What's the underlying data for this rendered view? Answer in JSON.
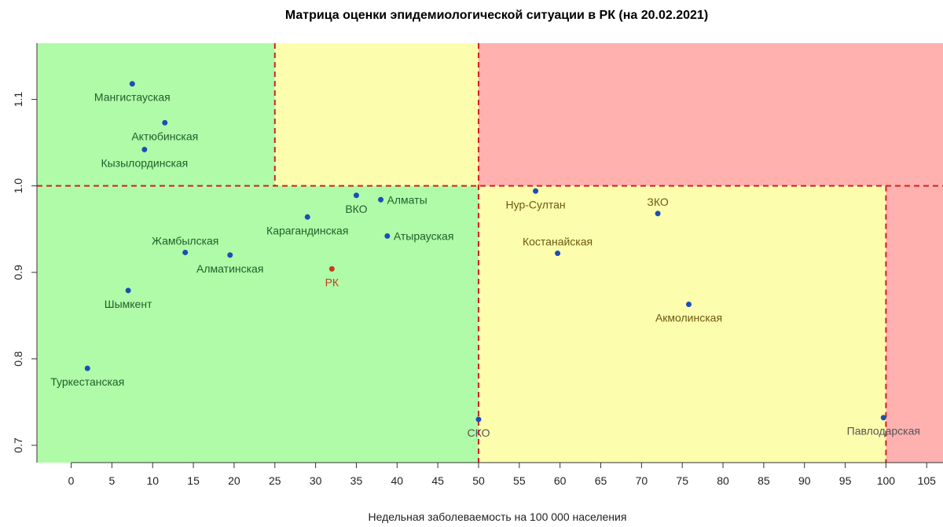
{
  "chart_data": {
    "type": "scatter",
    "title": "Матрица оценки эпидемиологической ситуации в РК (на 20.02.2021)",
    "xlabel": "Недельная заболеваемость на 100 000 населения",
    "ylabel": "",
    "xlim": [
      -4.2,
      107
    ],
    "ylim": [
      0.68,
      1.165
    ],
    "x_ticks": [
      0,
      5,
      10,
      15,
      20,
      25,
      30,
      35,
      40,
      45,
      50,
      55,
      60,
      65,
      70,
      75,
      80,
      85,
      90,
      95,
      100,
      105
    ],
    "y_ticks": [
      0.7,
      0.8,
      0.9,
      1.0,
      1.1
    ],
    "y_tick_labels": [
      "0.7",
      "0.8",
      "0.9",
      "1.0",
      "1.1"
    ],
    "zones": [
      {
        "x": [
          -4.2,
          50
        ],
        "y": [
          0.68,
          1.0
        ],
        "color": "#b0fba8"
      },
      {
        "x": [
          -4.2,
          25
        ],
        "y": [
          1.0,
          1.165
        ],
        "color": "#b0fba8"
      },
      {
        "x": [
          25,
          50
        ],
        "y": [
          1.0,
          1.165
        ],
        "color": "#fdfdae"
      },
      {
        "x": [
          50,
          107
        ],
        "y": [
          1.0,
          1.165
        ],
        "color": "#ffb1b0"
      },
      {
        "x": [
          50,
          100
        ],
        "y": [
          0.68,
          1.0
        ],
        "color": "#fdfdae"
      },
      {
        "x": [
          100,
          107
        ],
        "y": [
          0.68,
          1.0
        ],
        "color": "#ffb1b0"
      }
    ],
    "threshold_lines": [
      {
        "orientation": "h",
        "value": 1.0,
        "from": -4.2,
        "to": 107
      },
      {
        "orientation": "v",
        "value": 25,
        "from": 1.0,
        "to": 1.165
      },
      {
        "orientation": "v",
        "value": 50,
        "from": 0.68,
        "to": 1.165
      },
      {
        "orientation": "v",
        "value": 100,
        "from": 0.68,
        "to": 1.0
      }
    ],
    "line_color": "#d42020",
    "point_color": "#1a4fb5",
    "highlight_color": "#c0401a",
    "points": [
      {
        "name": "Мангистауская",
        "x": 7.5,
        "y": 1.118,
        "label_dx": 0,
        "label_dy": 22,
        "anchor": "middle",
        "label_color": "#1f5f2a"
      },
      {
        "name": "Актюбинская",
        "x": 11.5,
        "y": 1.073,
        "label_dx": 0,
        "label_dy": 22,
        "anchor": "middle",
        "label_color": "#1f5f2a"
      },
      {
        "name": "Кызылординская",
        "x": 9,
        "y": 1.042,
        "label_dx": 0,
        "label_dy": 22,
        "anchor": "middle",
        "label_color": "#1f5f2a"
      },
      {
        "name": "ВКО",
        "x": 35,
        "y": 0.989,
        "label_dx": 0,
        "label_dy": 22,
        "anchor": "middle",
        "label_color": "#1f5f2a"
      },
      {
        "name": "Алматы",
        "x": 38,
        "y": 0.984,
        "label_dx": 8,
        "label_dy": 5,
        "anchor": "start",
        "label_color": "#1f5f2a"
      },
      {
        "name": "Карагандинская",
        "x": 29,
        "y": 0.964,
        "label_dx": 0,
        "label_dy": 22,
        "anchor": "middle",
        "label_color": "#1f5f2a"
      },
      {
        "name": "Атырауская",
        "x": 38.8,
        "y": 0.942,
        "label_dx": 8,
        "label_dy": 5,
        "anchor": "start",
        "label_color": "#1f5f2a"
      },
      {
        "name": "Жамбылская",
        "x": 14,
        "y": 0.923,
        "label_dx": 0,
        "label_dy": -10,
        "anchor": "middle",
        "label_color": "#1f5f2a"
      },
      {
        "name": "Алматинская",
        "x": 19.5,
        "y": 0.92,
        "label_dx": 0,
        "label_dy": 22,
        "anchor": "middle",
        "label_color": "#1f5f2a"
      },
      {
        "name": "РК",
        "x": 32,
        "y": 0.904,
        "label_dx": 0,
        "label_dy": 22,
        "anchor": "middle",
        "label_color": "#c0401a",
        "highlight": true
      },
      {
        "name": "Шымкент",
        "x": 7,
        "y": 0.879,
        "label_dx": 0,
        "label_dy": 22,
        "anchor": "middle",
        "label_color": "#1f5f2a"
      },
      {
        "name": "Туркестанская",
        "x": 2,
        "y": 0.789,
        "label_dx": 0,
        "label_dy": 22,
        "anchor": "middle",
        "label_color": "#1f5f2a"
      },
      {
        "name": "СКО",
        "x": 50,
        "y": 0.73,
        "label_dx": 0,
        "label_dy": 22,
        "anchor": "middle",
        "label_color": "#555555"
      },
      {
        "name": "Нур-Султан",
        "x": 57,
        "y": 0.994,
        "label_dx": 0,
        "label_dy": 22,
        "anchor": "middle",
        "label_color": "#6b5a10"
      },
      {
        "name": "ЗКО",
        "x": 72,
        "y": 0.968,
        "label_dx": 0,
        "label_dy": -10,
        "anchor": "middle",
        "label_color": "#6b5a10"
      },
      {
        "name": "Костанайская",
        "x": 59.7,
        "y": 0.922,
        "label_dx": 0,
        "label_dy": -10,
        "anchor": "middle",
        "label_color": "#6b5a10"
      },
      {
        "name": "Акмолинская",
        "x": 75.8,
        "y": 0.863,
        "label_dx": 0,
        "label_dy": 22,
        "anchor": "middle",
        "label_color": "#6b5a10"
      },
      {
        "name": "Павлодарская",
        "x": 99.7,
        "y": 0.732,
        "label_dx": 0,
        "label_dy": 22,
        "anchor": "middle",
        "label_color": "#555555"
      }
    ]
  }
}
